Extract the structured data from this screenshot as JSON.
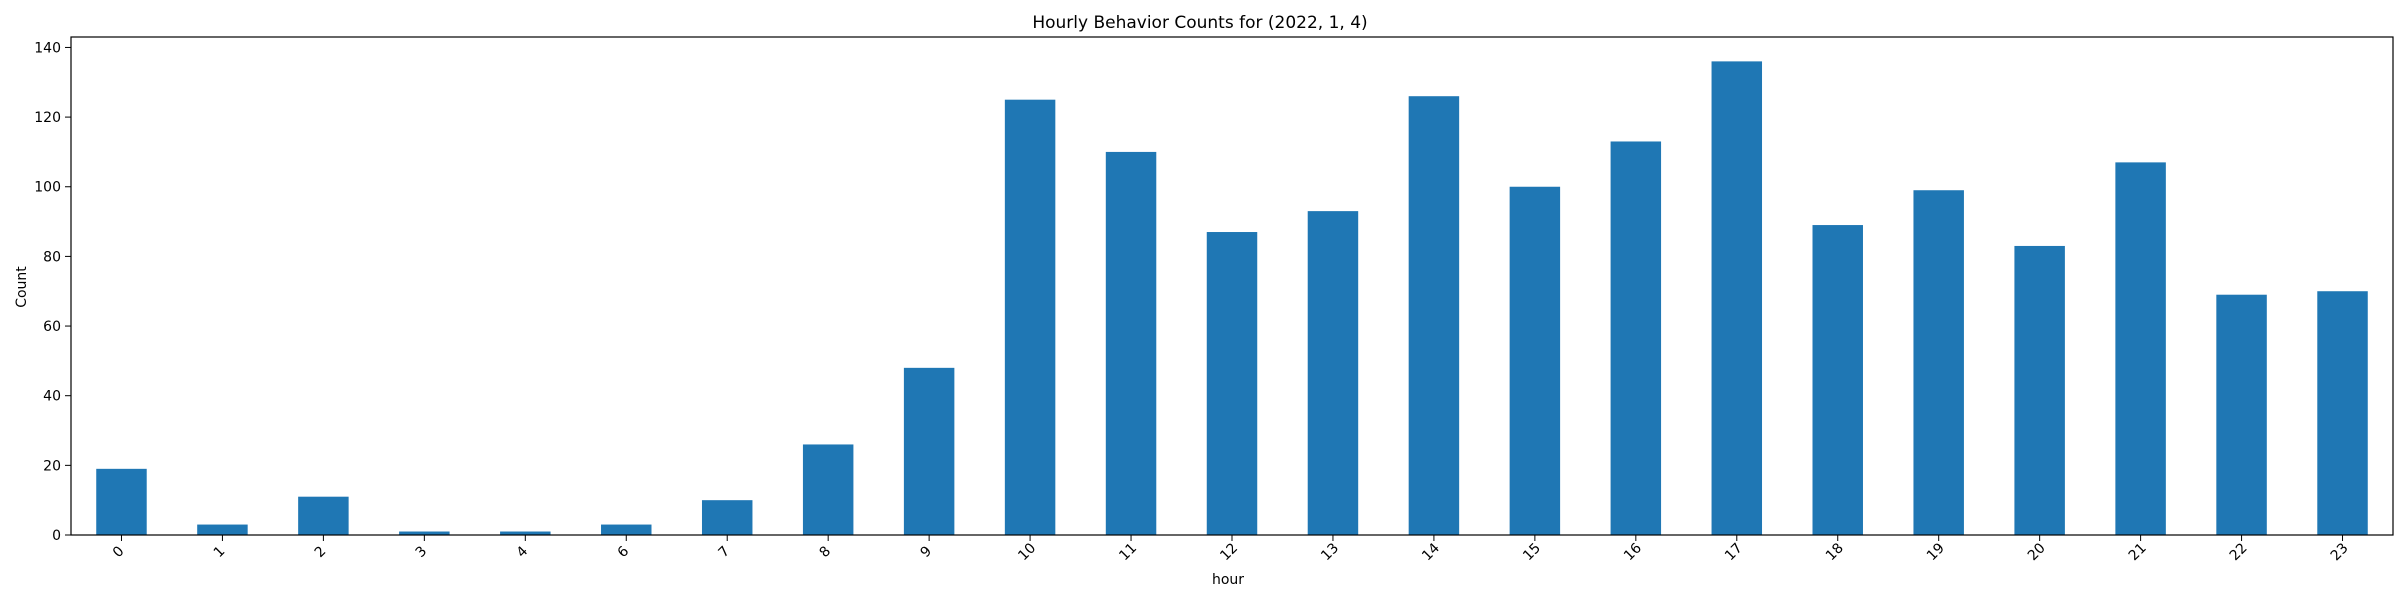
{
  "chart_data": {
    "type": "bar",
    "title": "Hourly Behavior Counts for (2022, 1, 4)",
    "xlabel": "hour",
    "ylabel": "Count",
    "categories": [
      "0",
      "1",
      "2",
      "3",
      "4",
      "6",
      "7",
      "8",
      "9",
      "10",
      "11",
      "12",
      "13",
      "14",
      "15",
      "16",
      "17",
      "18",
      "19",
      "20",
      "21",
      "22",
      "23"
    ],
    "values": [
      19,
      3,
      11,
      1,
      1,
      3,
      10,
      26,
      48,
      125,
      110,
      87,
      93,
      126,
      100,
      113,
      136,
      89,
      99,
      83,
      107,
      69,
      70
    ],
    "ylim": [
      0,
      143
    ],
    "yticks": [
      0,
      20,
      40,
      60,
      80,
      100,
      120,
      140
    ],
    "ytick_labels": [
      "0",
      "20",
      "40",
      "60",
      "80",
      "100",
      "120",
      "140"
    ],
    "grid": false,
    "legend": "none",
    "bar_color": "#1f77b4"
  }
}
